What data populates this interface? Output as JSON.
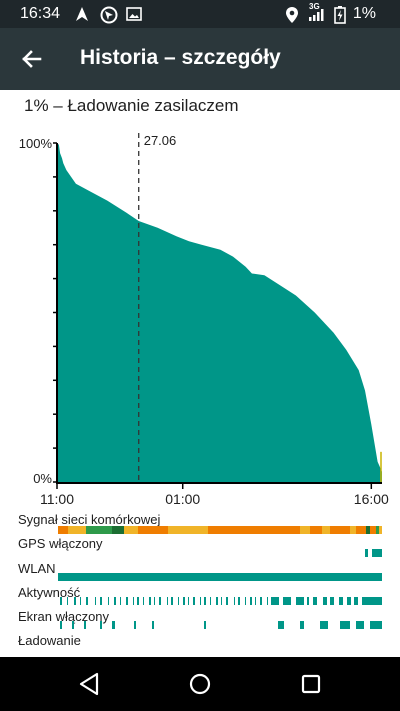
{
  "status_bar": {
    "time": "16:34",
    "network_label": "3G",
    "battery_percent": "1%",
    "icons": [
      "navigation-icon",
      "location-app-icon",
      "image-icon",
      "location-pin-icon",
      "signal-icon",
      "battery-icon"
    ]
  },
  "app_bar": {
    "title": "Historia – szczegóły",
    "back_icon": "arrow-left-icon"
  },
  "subtitle": "1% – Ładowanie zasilaczem",
  "colors": {
    "app_bar": "#2b373b",
    "status_bar": "#1f272b",
    "accent": "#009688",
    "signal_orange": "#ef7d00",
    "signal_yellow": "#f0b429",
    "signal_green": "#2e9a4a",
    "signal_dark_green": "#1b6e32"
  },
  "chart_data": {
    "type": "area",
    "title": "",
    "xlabel": "",
    "ylabel": "",
    "x_unit": "hours_since_11_00",
    "xlim": [
      0,
      5.17
    ],
    "ylim": [
      0,
      100
    ],
    "y_ticks": [
      "100%",
      "0%"
    ],
    "x_ticks": [
      {
        "label": "11:00",
        "x": 0
      },
      {
        "label": "01:00",
        "x": 2.0
      },
      {
        "label": "16:00",
        "x": 5.0
      }
    ],
    "marker": {
      "label": "27.06",
      "x": 1.3
    },
    "series": [
      {
        "color": "#009688",
        "x": [
          0,
          0.03,
          0.05,
          0.08,
          0.1,
          0.15,
          0.3,
          0.5,
          0.8,
          1.1,
          1.3,
          1.6,
          1.9,
          2.1,
          2.3,
          2.6,
          2.8,
          3.0,
          3.1,
          3.3,
          3.55,
          3.8,
          4.1,
          4.4,
          4.6,
          4.8,
          4.9,
          5.0,
          5.1,
          5.17
        ],
        "values": [
          100,
          99.5,
          97,
          95.5,
          94,
          92,
          88,
          86,
          83,
          79.5,
          77,
          75,
          72.5,
          71,
          70,
          68.5,
          66.5,
          63.5,
          61.5,
          61,
          58,
          55,
          50,
          44,
          39,
          33,
          27,
          17,
          6,
          3
        ]
      }
    ]
  },
  "timelines": [
    {
      "label": "Sygnał sieci komórkowej"
    },
    {
      "label": "GPS włączony"
    },
    {
      "label": "WLAN"
    },
    {
      "label": "Aktywność"
    },
    {
      "label": "Ekran włączony"
    },
    {
      "label": "Ładowanie"
    }
  ],
  "nav_bar": {
    "back": "nav-back-icon",
    "home": "nav-home-icon",
    "recents": "nav-recents-icon"
  }
}
